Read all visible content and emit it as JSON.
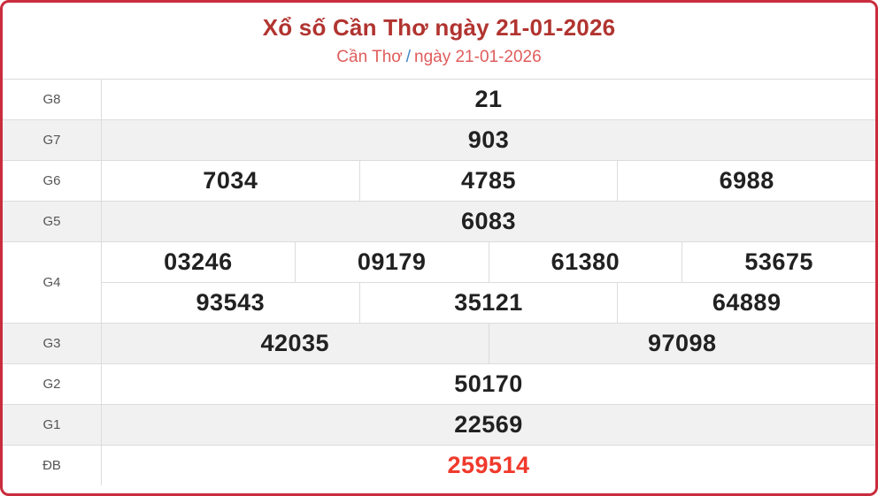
{
  "header": {
    "title": "Xổ số Cần Thơ ngày 21-01-2026",
    "breadcrumb": {
      "region": "Cần Thơ",
      "separator": "/",
      "date": "ngày 21-01-2026"
    }
  },
  "results": {
    "rows": [
      {
        "label": "G8",
        "groups": [
          [
            "21"
          ]
        ]
      },
      {
        "label": "G7",
        "groups": [
          [
            "903"
          ]
        ]
      },
      {
        "label": "G6",
        "groups": [
          [
            "7034",
            "4785",
            "6988"
          ]
        ]
      },
      {
        "label": "G5",
        "groups": [
          [
            "6083"
          ]
        ]
      },
      {
        "label": "G4",
        "groups": [
          [
            "03246",
            "09179",
            "61380",
            "53675"
          ],
          [
            "93543",
            "35121",
            "64889"
          ]
        ]
      },
      {
        "label": "G3",
        "groups": [
          [
            "42035",
            "97098"
          ]
        ]
      },
      {
        "label": "G2",
        "groups": [
          [
            "50170"
          ]
        ]
      },
      {
        "label": "G1",
        "groups": [
          [
            "22569"
          ]
        ]
      },
      {
        "label": "ĐB",
        "groups": [
          [
            "259514"
          ]
        ],
        "special": true
      }
    ]
  },
  "colors": {
    "outer_border": "#c92c3c",
    "title_red": "#b13430",
    "breadcrumb_red": "#e05c5c",
    "breadcrumb_slash_blue": "#3d85c6",
    "stripe_gray": "#f1f1f1",
    "cell_border_gray": "#dcdcdc",
    "number_dark": "#212121",
    "label_gray": "#555555",
    "special_number_red": "#f0392b"
  }
}
